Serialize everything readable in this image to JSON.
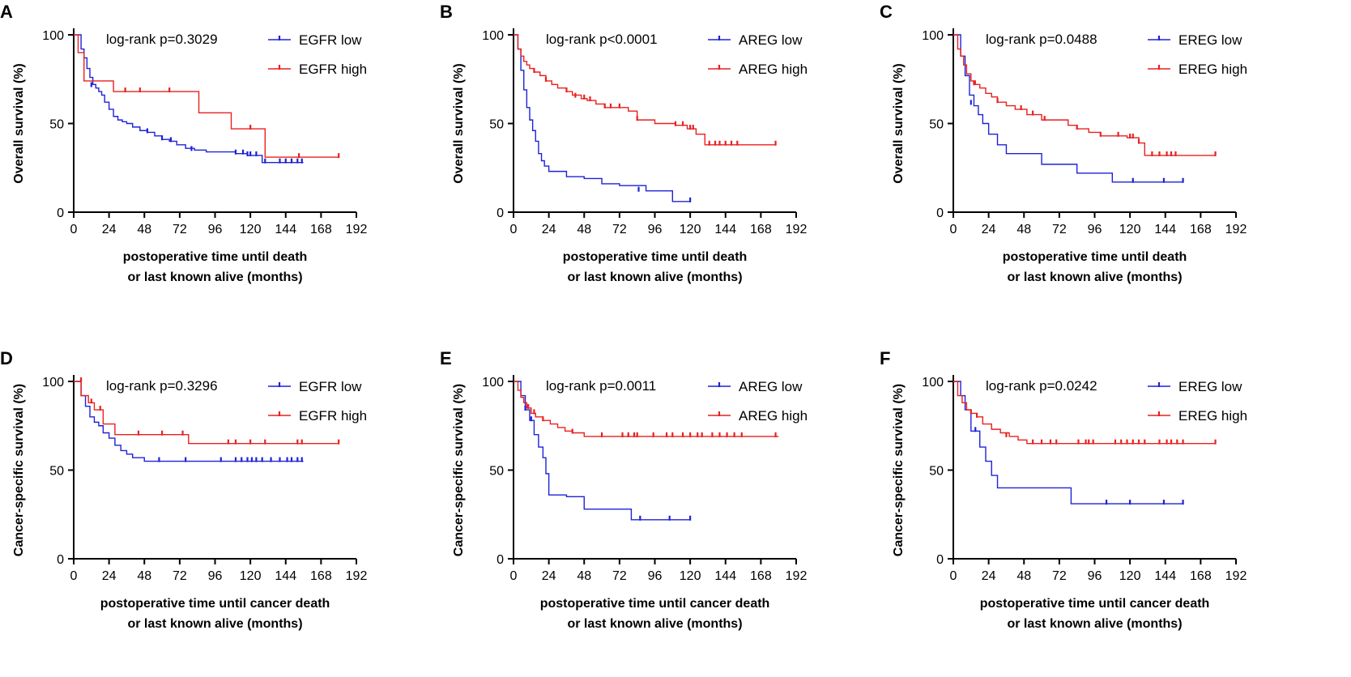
{
  "figure": {
    "title": ""
  },
  "colors": {
    "low": "#1f22d6",
    "high": "#e8211f",
    "axis": "#000000"
  },
  "chart_data": [
    {
      "id": "A",
      "panel": "A",
      "type": "line",
      "title": "",
      "ylabel": "Overall survival (%)",
      "xlabel_lines": [
        "postoperative time until death",
        "or last known alive (months)"
      ],
      "xlim": [
        0,
        192
      ],
      "ylim": [
        0,
        100
      ],
      "xticks": [
        0,
        24,
        48,
        72,
        96,
        120,
        144,
        168,
        192
      ],
      "yticks": [
        0,
        50,
        100
      ],
      "logrank": "log-rank p=0.3029",
      "series": [
        {
          "name": "EGFR low",
          "group": "low",
          "x": [
            0,
            5,
            7,
            9,
            11,
            13,
            15,
            17,
            19,
            21,
            24,
            27,
            30,
            33,
            36,
            40,
            45,
            50,
            55,
            60,
            65,
            70,
            76,
            82,
            90,
            100,
            110,
            118,
            128,
            135,
            156
          ],
          "y": [
            100,
            92,
            87,
            81,
            76,
            72,
            70,
            68,
            66,
            62,
            58,
            54,
            52,
            51,
            50,
            48,
            46,
            45,
            43,
            41,
            40,
            38,
            36,
            35,
            34,
            34,
            33,
            32,
            28,
            28,
            28
          ],
          "censor_x": [
            12,
            50,
            60,
            66,
            80,
            110,
            115,
            118,
            120,
            124,
            130,
            140,
            144,
            148,
            152,
            155
          ],
          "censor_y": [
            71,
            45,
            41,
            40,
            35,
            33,
            33,
            32,
            32,
            32,
            28,
            28,
            28,
            28,
            28,
            28
          ]
        },
        {
          "name": "EGFR high",
          "group": "high",
          "x": [
            0,
            3,
            7,
            27,
            80,
            85,
            107,
            130,
            180
          ],
          "y": [
            100,
            90,
            74,
            68,
            68,
            56,
            47,
            31,
            31
          ],
          "censor_x": [
            35,
            45,
            65,
            120,
            153,
            180
          ],
          "censor_y": [
            68,
            68,
            68,
            47,
            31,
            31
          ]
        }
      ]
    },
    {
      "id": "B",
      "panel": "B",
      "type": "line",
      "title": "",
      "ylabel": "Overall survival (%)",
      "xlabel_lines": [
        "postoperative time until death",
        "or last known alive (months)"
      ],
      "xlim": [
        0,
        192
      ],
      "ylim": [
        0,
        100
      ],
      "xticks": [
        0,
        24,
        48,
        72,
        96,
        120,
        144,
        168,
        192
      ],
      "yticks": [
        0,
        50,
        100
      ],
      "logrank": "log-rank p<0.0001",
      "series": [
        {
          "name": "AREG low",
          "group": "low",
          "x": [
            0,
            3,
            5,
            7,
            9,
            11,
            13,
            15,
            17,
            19,
            21,
            24,
            36,
            48,
            60,
            72,
            90,
            108,
            120
          ],
          "y": [
            100,
            92,
            80,
            69,
            59,
            52,
            46,
            40,
            33,
            29,
            26,
            23,
            20,
            19,
            16,
            15,
            12,
            6,
            6
          ],
          "censor_x": [
            85,
            120
          ],
          "censor_y": [
            12,
            6
          ]
        },
        {
          "name": "AREG high",
          "group": "high",
          "x": [
            0,
            3,
            5,
            7,
            9,
            11,
            14,
            18,
            22,
            26,
            30,
            36,
            40,
            46,
            50,
            56,
            62,
            72,
            78,
            84,
            96,
            110,
            118,
            124,
            130,
            178
          ],
          "y": [
            100,
            92,
            88,
            85,
            83,
            81,
            79,
            77,
            74,
            72,
            70,
            68,
            66,
            64,
            63,
            61,
            59,
            59,
            57,
            52,
            50,
            49,
            47,
            44,
            38,
            38
          ],
          "censor_x": [
            14,
            22,
            36,
            42,
            48,
            52,
            62,
            66,
            72,
            84,
            110,
            115,
            120,
            122,
            133,
            137,
            140,
            144,
            148,
            152,
            178
          ],
          "censor_y": [
            79,
            74,
            68,
            65,
            64,
            63,
            59,
            59,
            59,
            52,
            49,
            49,
            47,
            47,
            38,
            38,
            38,
            38,
            38,
            38,
            38
          ]
        }
      ]
    },
    {
      "id": "C",
      "panel": "C",
      "type": "line",
      "title": "",
      "ylabel": "Overall survival (%)",
      "xlabel_lines": [
        "postoperative time until death",
        "or last known alive (months)"
      ],
      "xlim": [
        0,
        192
      ],
      "ylim": [
        0,
        100
      ],
      "xticks": [
        0,
        24,
        48,
        72,
        96,
        120,
        144,
        168,
        192
      ],
      "yticks": [
        0,
        50,
        100
      ],
      "logrank": "log-rank p=0.0488",
      "series": [
        {
          "name": "EREG low",
          "group": "low",
          "x": [
            0,
            5,
            8,
            11,
            14,
            17,
            20,
            24,
            30,
            36,
            48,
            60,
            72,
            84,
            108,
            156
          ],
          "y": [
            100,
            88,
            77,
            66,
            60,
            55,
            50,
            44,
            38,
            33,
            33,
            27,
            27,
            22,
            17,
            17
          ],
          "censor_x": [
            12,
            122,
            143,
            156
          ],
          "censor_y": [
            61,
            17,
            17,
            17
          ]
        },
        {
          "name": "EREG high",
          "group": "high",
          "x": [
            0,
            3,
            5,
            7,
            9,
            12,
            15,
            18,
            22,
            26,
            30,
            36,
            42,
            50,
            60,
            70,
            78,
            84,
            92,
            100,
            110,
            118,
            126,
            130,
            178
          ],
          "y": [
            100,
            92,
            88,
            83,
            78,
            74,
            72,
            70,
            67,
            65,
            62,
            60,
            58,
            55,
            52,
            52,
            49,
            47,
            45,
            43,
            43,
            42,
            39,
            32,
            32
          ],
          "censor_x": [
            14,
            30,
            46,
            54,
            62,
            84,
            100,
            112,
            120,
            122,
            126,
            135,
            140,
            145,
            148,
            151,
            178
          ],
          "censor_y": [
            72,
            62,
            58,
            55,
            52,
            47,
            43,
            43,
            42,
            42,
            39,
            32,
            32,
            32,
            32,
            32,
            32
          ]
        }
      ]
    },
    {
      "id": "D",
      "panel": "D",
      "type": "line",
      "title": "",
      "ylabel": "Cancer-specific survival (%)",
      "xlabel_lines": [
        "postoperative time until cancer death",
        "or last known alive (months)"
      ],
      "xlim": [
        0,
        192
      ],
      "ylim": [
        0,
        100
      ],
      "xticks": [
        0,
        24,
        48,
        72,
        96,
        120,
        144,
        168,
        192
      ],
      "yticks": [
        0,
        50,
        100
      ],
      "logrank": "log-rank p=0.3296",
      "series": [
        {
          "name": "EGFR low",
          "group": "low",
          "x": [
            0,
            5,
            8,
            11,
            14,
            17,
            20,
            24,
            28,
            32,
            36,
            40,
            48,
            156
          ],
          "y": [
            100,
            92,
            86,
            80,
            77,
            75,
            71,
            68,
            64,
            61,
            59,
            57,
            55,
            55
          ],
          "censor_x": [
            58,
            76,
            100,
            110,
            114,
            118,
            121,
            124,
            128,
            134,
            140,
            145,
            148,
            152,
            155
          ],
          "censor_y": [
            55,
            55,
            55,
            55,
            55,
            55,
            55,
            55,
            55,
            55,
            55,
            55,
            55,
            55,
            55
          ]
        },
        {
          "name": "EGFR high",
          "group": "high",
          "x": [
            0,
            5,
            10,
            14,
            20,
            28,
            78,
            180
          ],
          "y": [
            100,
            92,
            88,
            84,
            76,
            70,
            65,
            65
          ],
          "censor_x": [
            5,
            12,
            18,
            44,
            60,
            74,
            105,
            110,
            120,
            130,
            152,
            155,
            180
          ],
          "censor_y": [
            100,
            88,
            84,
            70,
            70,
            70,
            65,
            65,
            65,
            65,
            65,
            65,
            65
          ]
        }
      ]
    },
    {
      "id": "E",
      "panel": "E",
      "type": "line",
      "title": "",
      "ylabel": "Cancer-specific survival (%)",
      "xlabel_lines": [
        "postoperative time until cancer death",
        "or last known alive (months)"
      ],
      "xlim": [
        0,
        192
      ],
      "ylim": [
        0,
        100
      ],
      "xticks": [
        0,
        24,
        48,
        72,
        96,
        120,
        144,
        168,
        192
      ],
      "yticks": [
        0,
        50,
        100
      ],
      "logrank": "log-rank p=0.0011",
      "series": [
        {
          "name": "AREG low",
          "group": "low",
          "x": [
            0,
            5,
            8,
            11,
            14,
            17,
            20,
            22,
            24,
            36,
            48,
            80,
            120
          ],
          "y": [
            100,
            92,
            84,
            78,
            70,
            63,
            57,
            48,
            36,
            35,
            28,
            22,
            22
          ],
          "censor_x": [
            8,
            12,
            86,
            106,
            120
          ],
          "censor_y": [
            84,
            78,
            22,
            22,
            22
          ]
        },
        {
          "name": "AREG high",
          "group": "high",
          "x": [
            0,
            3,
            5,
            7,
            9,
            12,
            15,
            20,
            25,
            30,
            35,
            40,
            48,
            180
          ],
          "y": [
            100,
            95,
            91,
            88,
            85,
            82,
            80,
            78,
            76,
            74,
            72,
            71,
            69,
            69
          ],
          "censor_x": [
            10,
            14,
            20,
            40,
            60,
            74,
            78,
            82,
            84,
            95,
            104,
            108,
            115,
            120,
            125,
            128,
            135,
            140,
            145,
            150,
            155,
            178
          ],
          "censor_y": [
            85,
            82,
            78,
            71,
            69,
            69,
            69,
            69,
            69,
            69,
            69,
            69,
            69,
            69,
            69,
            69,
            69,
            69,
            69,
            69,
            69,
            69
          ]
        }
      ]
    },
    {
      "id": "F",
      "panel": "F",
      "type": "line",
      "title": "",
      "ylabel": "Cancer-specific survival (%)",
      "xlabel_lines": [
        "postoperative time until cancer death",
        "or last known alive (months)"
      ],
      "xlim": [
        0,
        192
      ],
      "ylim": [
        0,
        100
      ],
      "xticks": [
        0,
        24,
        48,
        72,
        96,
        120,
        144,
        168,
        192
      ],
      "yticks": [
        0,
        50,
        100
      ],
      "logrank": "log-rank p=0.0242",
      "series": [
        {
          "name": "EREG low",
          "group": "low",
          "x": [
            0,
            5,
            8,
            12,
            15,
            18,
            22,
            26,
            30,
            36,
            80,
            156
          ],
          "y": [
            100,
            92,
            84,
            72,
            72,
            63,
            55,
            47,
            40,
            40,
            31,
            31
          ],
          "censor_x": [
            15,
            104,
            120,
            143,
            156
          ],
          "censor_y": [
            72,
            31,
            31,
            31,
            31
          ]
        },
        {
          "name": "EREG high",
          "group": "high",
          "x": [
            0,
            3,
            6,
            9,
            12,
            16,
            20,
            26,
            32,
            38,
            44,
            50,
            178
          ],
          "y": [
            100,
            92,
            88,
            84,
            82,
            80,
            76,
            73,
            71,
            69,
            67,
            65,
            65
          ],
          "censor_x": [
            12,
            16,
            36,
            54,
            60,
            66,
            70,
            85,
            90,
            92,
            95,
            110,
            114,
            118,
            122,
            126,
            130,
            140,
            145,
            148,
            152,
            156,
            178
          ],
          "censor_y": [
            82,
            80,
            69,
            65,
            65,
            65,
            65,
            65,
            65,
            65,
            65,
            65,
            65,
            65,
            65,
            65,
            65,
            65,
            65,
            65,
            65,
            65,
            65
          ]
        }
      ]
    }
  ]
}
